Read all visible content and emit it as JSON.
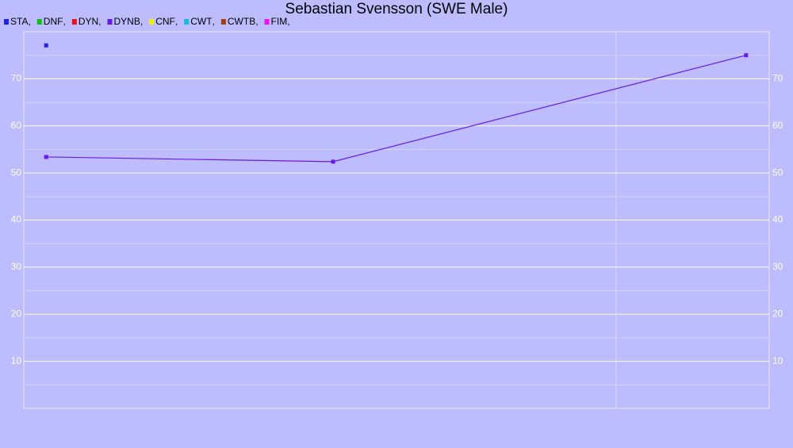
{
  "chart_data": {
    "type": "scatter-line",
    "title": "Sebastian Svensson (SWE Male)",
    "legend_separator": ",",
    "xlim": [
      0,
      100
    ],
    "ylim": [
      0,
      80
    ],
    "yticks": [
      10,
      20,
      30,
      40,
      50,
      60,
      70
    ],
    "minor_yticks": [
      5,
      15,
      25,
      35,
      45,
      55,
      65,
      75
    ],
    "grid": true,
    "series": [
      {
        "name": "STA",
        "color": "#2020e8",
        "x": [
          3.0
        ],
        "values": [
          77.1
        ]
      },
      {
        "name": "DNF",
        "color": "#10c010",
        "x": [],
        "values": []
      },
      {
        "name": "DYN",
        "color": "#f01010",
        "x": [],
        "values": []
      },
      {
        "name": "DYNB",
        "color": "#6a1ae8",
        "x": [
          3.0,
          41.5,
          96.9
        ],
        "values": [
          53.4,
          52.4,
          75.0
        ]
      },
      {
        "name": "CNF",
        "color": "#f0f010",
        "x": [],
        "values": []
      },
      {
        "name": "CWT",
        "color": "#20b8d8",
        "x": [],
        "values": []
      },
      {
        "name": "CWTB",
        "color": "#a04010",
        "x": [],
        "values": []
      },
      {
        "name": "FIM",
        "color": "#f010f0",
        "x": [],
        "values": []
      }
    ]
  }
}
